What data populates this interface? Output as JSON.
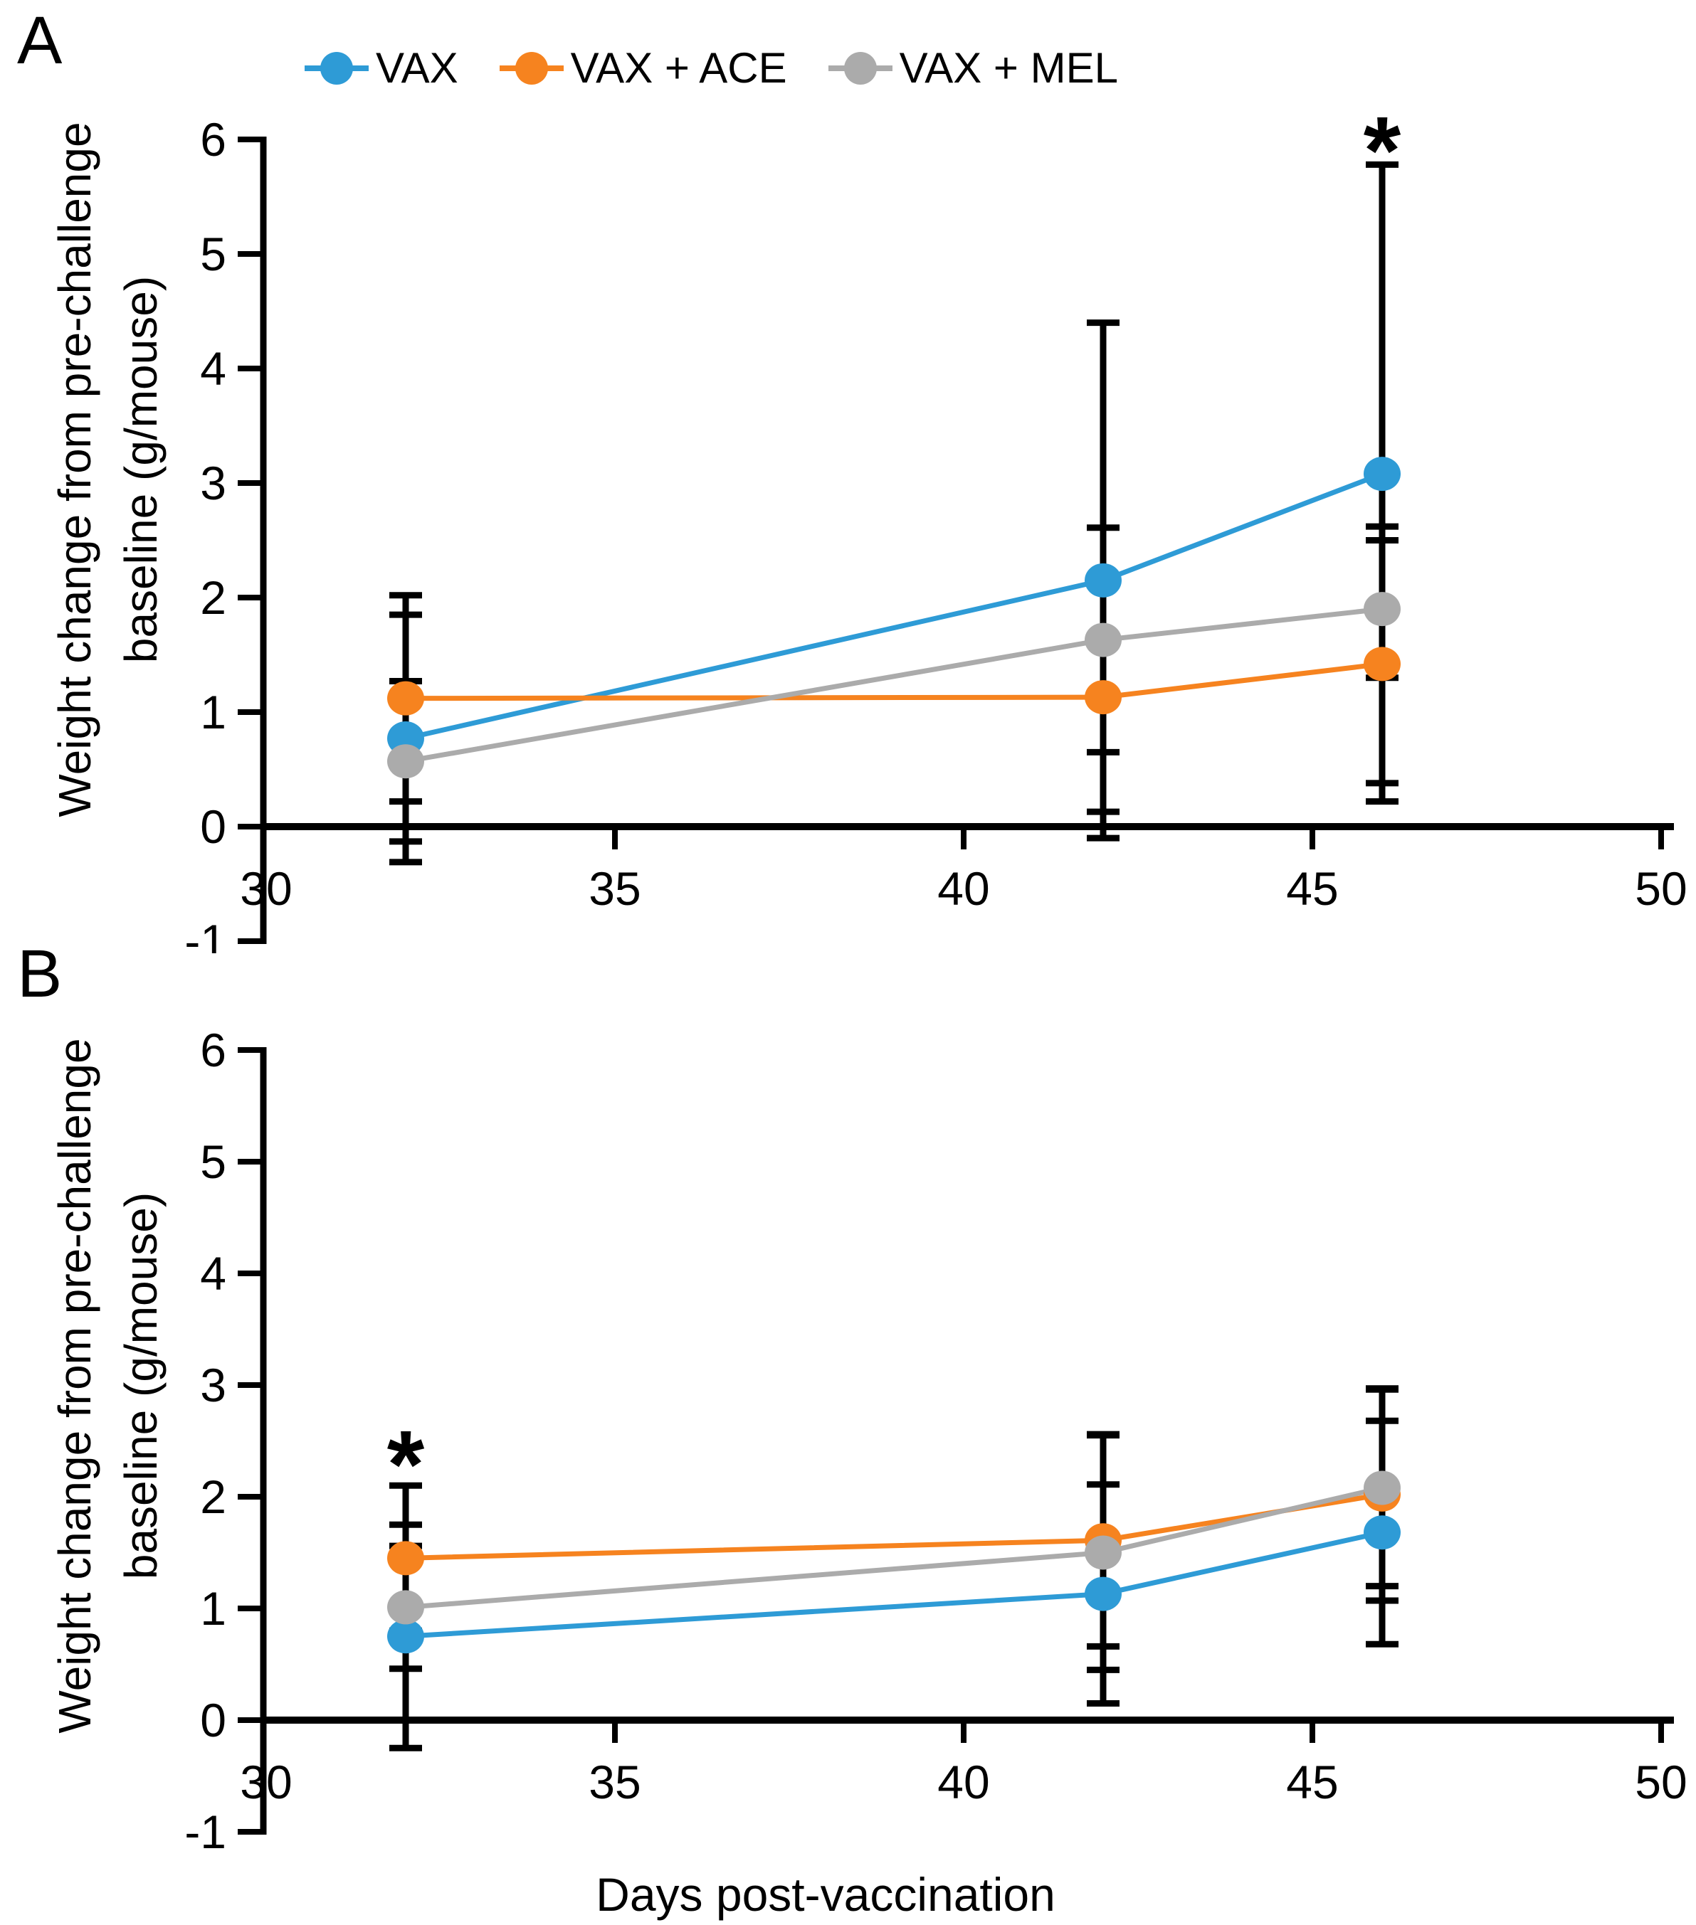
{
  "figure": {
    "panel_a_letter": "A",
    "panel_b_letter": "B",
    "x_axis_title": "Days post-vaccination",
    "y_axis_label_line1": "Weight change from pre-challenge",
    "y_axis_label_line2": "baseline (g/mouse)",
    "colors": {
      "vax": "#2E9BD6",
      "vax_ace": "#F6831F",
      "vax_mel": "#ABABAB",
      "axis": "#000000"
    }
  },
  "legend": {
    "items": [
      {
        "label": "VAX",
        "color": "#2E9BD6"
      },
      {
        "label": "VAX + ACE",
        "color": "#F6831F"
      },
      {
        "label": "VAX + MEL",
        "color": "#ABABAB"
      }
    ]
  },
  "chart_data": [
    {
      "panel": "A",
      "type": "line",
      "x": [
        32,
        42,
        46
      ],
      "xlim": [
        30,
        50
      ],
      "ylim": [
        -1,
        6
      ],
      "x_ticks": [
        30,
        35,
        40,
        45,
        50
      ],
      "y_ticks": [
        -1,
        0,
        1,
        2,
        3,
        4,
        5,
        6
      ],
      "ylabel": "Weight change from pre-challenge baseline (g/mouse)",
      "grid": false,
      "legend_position": "top",
      "series": [
        {
          "name": "VAX",
          "color": "#2E9BD6",
          "values": [
            0.77,
            2.15,
            3.08
          ],
          "errors": [
            1.08,
            2.25,
            2.7
          ]
        },
        {
          "name": "VAX + ACE",
          "color": "#F6831F",
          "values": [
            1.12,
            1.13,
            1.42
          ],
          "errors": [
            0.9,
            1.0,
            1.2
          ]
        },
        {
          "name": "VAX + MEL",
          "color": "#ABABAB",
          "values": [
            0.57,
            1.63,
            1.9
          ],
          "errors": [
            0.7,
            0.98,
            0.6
          ]
        }
      ],
      "annotations": [
        {
          "text": "*",
          "x": 46,
          "y": 6.05
        }
      ]
    },
    {
      "panel": "B",
      "type": "line",
      "x": [
        32,
        42,
        46
      ],
      "xlim": [
        30,
        50
      ],
      "ylim": [
        -1,
        6
      ],
      "x_ticks": [
        30,
        35,
        40,
        45,
        50
      ],
      "y_ticks": [
        -1,
        0,
        1,
        2,
        3,
        4,
        5,
        6
      ],
      "xlabel": "Days post-vaccination",
      "ylabel": "Weight change from pre-challenge baseline (g/mouse)",
      "grid": false,
      "legend_position": "none",
      "series": [
        {
          "name": "VAX",
          "color": "#2E9BD6",
          "values": [
            0.75,
            1.13,
            1.68
          ],
          "errors": [
            1.0,
            0.98,
            1.0
          ]
        },
        {
          "name": "VAX + ACE",
          "color": "#F6831F",
          "values": [
            1.45,
            1.61,
            2.02
          ],
          "errors": [
            0.65,
            0.95,
            0.95
          ]
        },
        {
          "name": "VAX + MEL",
          "color": "#ABABAB",
          "values": [
            1.01,
            1.5,
            2.08
          ],
          "errors": [
            0.55,
            1.05,
            0.88
          ]
        }
      ],
      "annotations": [
        {
          "text": "*",
          "x": 32,
          "y": 2.44
        }
      ]
    }
  ]
}
